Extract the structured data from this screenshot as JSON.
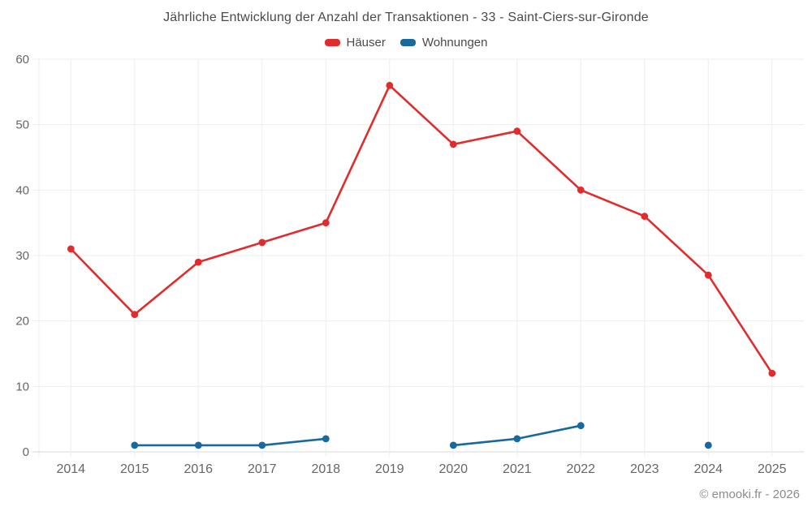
{
  "title": "Jährliche Entwicklung der Anzahl der Transaktionen - 33 - Saint-Ciers-sur-Gironde",
  "footer": "© emooki.fr - 2026",
  "colors": {
    "hauser_red": "#e02c2c",
    "wohnungen_blue": "#17699e",
    "gridline": "#ededed",
    "axis_line": "#d9d9d9",
    "tick_text": "#666666",
    "title_text": "#4a4a4a",
    "footer_text": "#8c8c8c"
  },
  "chart_data": {
    "type": "line",
    "title": "Jährliche Entwicklung der Anzahl der Transaktionen - 33 - Saint-Ciers-sur-Gironde",
    "categories": [
      "2014",
      "2015",
      "2016",
      "2017",
      "2018",
      "2019",
      "2020",
      "2021",
      "2022",
      "2023",
      "2024",
      "2025"
    ],
    "series": [
      {
        "name": "Häuser",
        "color": "#e02c2c",
        "values": [
          31,
          21,
          29,
          32,
          35,
          56,
          47,
          49,
          40,
          36,
          27,
          12
        ]
      },
      {
        "name": "Wohnungen",
        "color": "#17699e",
        "values": [
          null,
          1,
          1,
          1,
          2,
          null,
          1,
          2,
          4,
          null,
          1,
          null
        ]
      }
    ],
    "xlabel": "",
    "ylabel": "",
    "ylim": [
      0,
      60
    ],
    "yticks": [
      0,
      10,
      20,
      30,
      40,
      50,
      60
    ],
    "grid": true,
    "legend_position": "top",
    "marker": "circle"
  }
}
